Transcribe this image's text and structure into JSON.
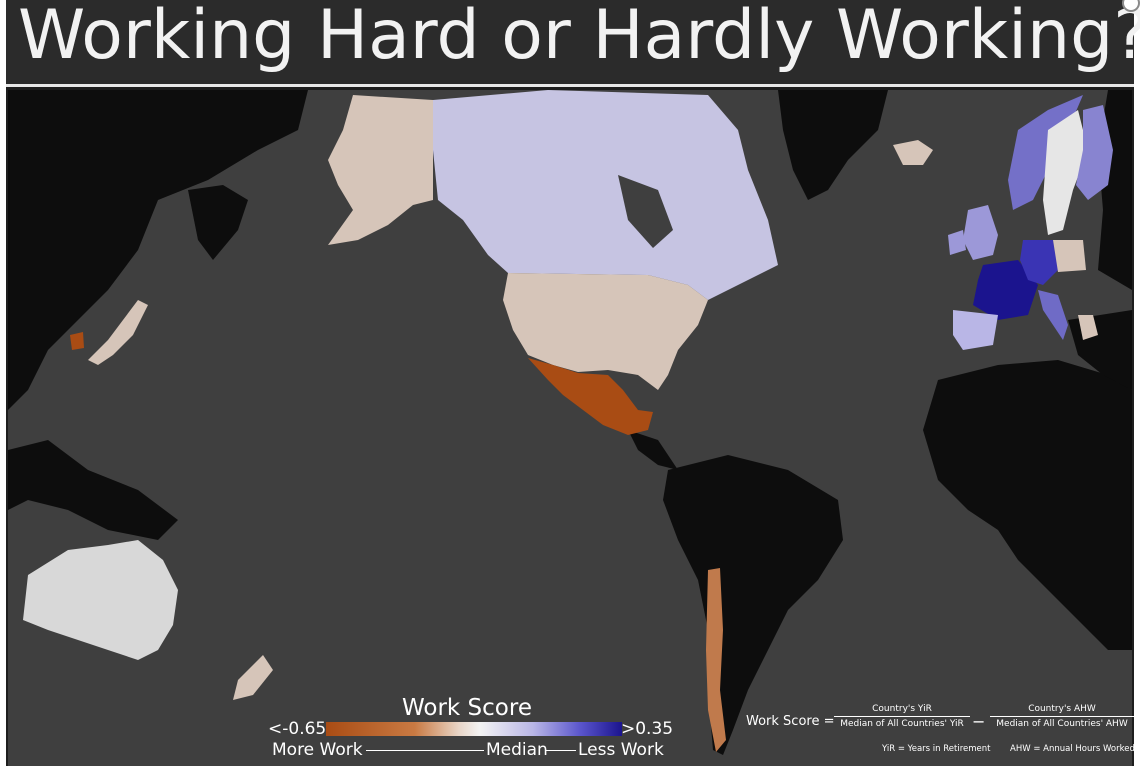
{
  "title": "Working Hard or Hardly Working?",
  "legend": {
    "title": "Work Score",
    "min_label": "<-0.65",
    "max_label": ">0.35",
    "more_label": "More Work",
    "median_label": "Median",
    "less_label": "Less Work",
    "scale_colors": [
      "#a94c14",
      "#e8d6c8",
      "#f3f3f3",
      "#b9b6e6",
      "#1b148e"
    ]
  },
  "formula": {
    "label": "Work Score =",
    "numerator_1": "Country's YiR",
    "denominator_1": "Median of All Countries' YiR",
    "operator": "−",
    "numerator_2": "Country's AHW",
    "denominator_2": "Median of All Countries' AHW",
    "note_1": "YiR = Years in Retirement",
    "note_2": "AHW = Annual Hours Worked"
  },
  "colors": {
    "ocean": "#3f3f3f",
    "no_data_land": "#0d0d0d",
    "background": "#2b2b2b"
  }
}
